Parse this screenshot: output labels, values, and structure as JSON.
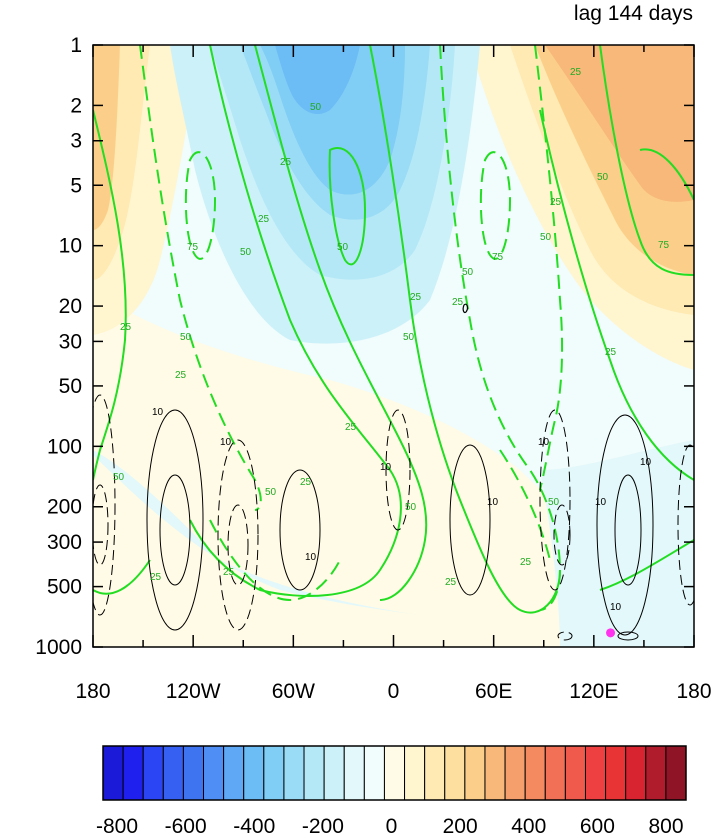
{
  "chart_data": {
    "type": "heatmap",
    "title": "lag 144 days",
    "xlabel": "",
    "ylabel": "",
    "x_tick_labels": [
      "180",
      "120W",
      "60W",
      "0",
      "60E",
      "120E",
      "180"
    ],
    "x_tick_values": [
      -180,
      -120,
      -60,
      0,
      60,
      120,
      180
    ],
    "y_scale": "log",
    "y_tick_labels": [
      "1",
      "2",
      "3",
      "5",
      "10",
      "20",
      "30",
      "50",
      "100",
      "200",
      "300",
      "500",
      "1000"
    ],
    "y_tick_values": [
      1,
      2,
      3,
      5,
      10,
      20,
      30,
      50,
      100,
      200,
      300,
      500,
      1000
    ],
    "xlim": [
      -180,
      180
    ],
    "ylim": [
      1000,
      1
    ],
    "colorbar": {
      "labels": [
        "-800",
        "-600",
        "-400",
        "-200",
        "0",
        "200",
        "400",
        "600",
        "800"
      ],
      "label_values": [
        -800,
        -600,
        -400,
        -200,
        0,
        200,
        400,
        600,
        800
      ],
      "levels": 28,
      "colors": [
        "#1a1ad8",
        "#2020ee",
        "#2b45f5",
        "#3560f2",
        "#3f74f0",
        "#4f8ef5",
        "#5ea8f5",
        "#6cbcf5",
        "#80cdf5",
        "#9adcf5",
        "#b4e8f7",
        "#cdf1f9",
        "#e3f8fa",
        "#f1fcfc",
        "#fffbe6",
        "#fff5cf",
        "#feeab2",
        "#fde0a0",
        "#fbcf8a",
        "#f7b87a",
        "#f5a06c",
        "#f48a60",
        "#f27055",
        "#f05a4c",
        "#ee4040",
        "#e83434",
        "#d82430",
        "#b01c2c",
        "#8e1426"
      ]
    },
    "contour_labels": {
      "green": [
        "25",
        "50",
        "75"
      ],
      "black": [
        "10"
      ]
    },
    "marker": {
      "lon": 130,
      "pressure": 850,
      "color": "#ff33ee"
    }
  }
}
